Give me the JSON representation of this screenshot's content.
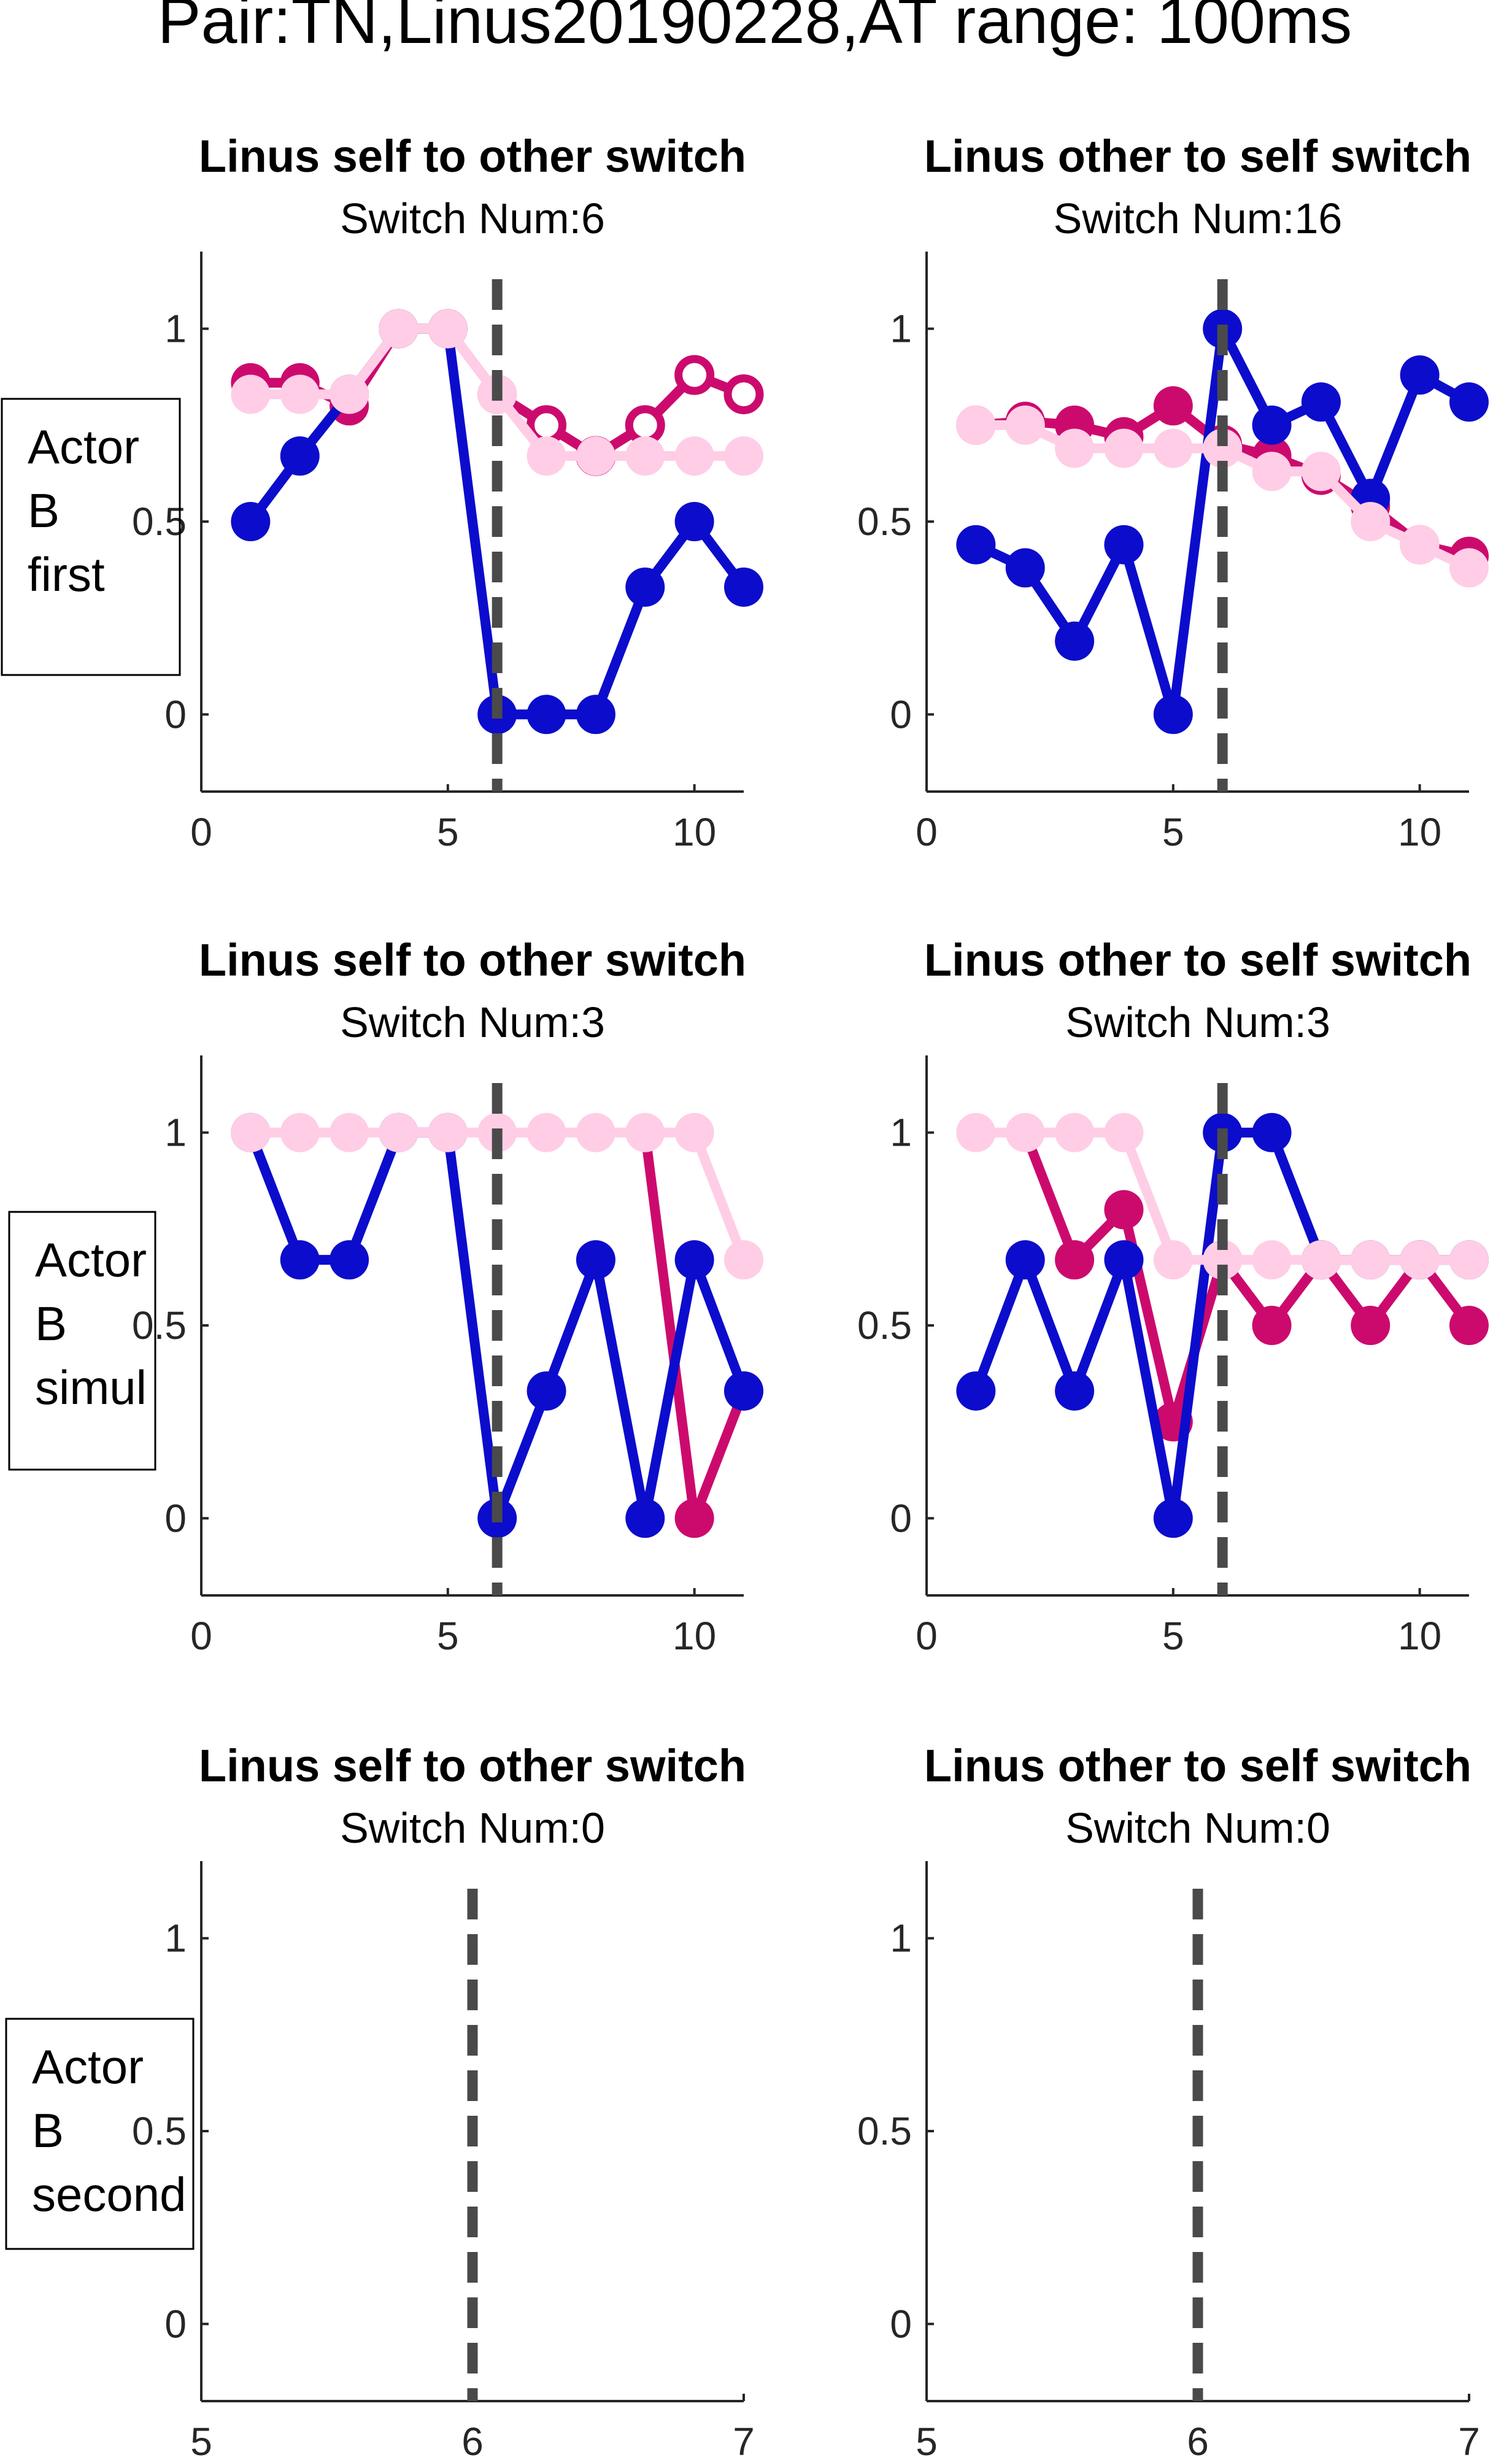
{
  "figure": {
    "title": "Pair:TN,Linus20190228,AT range: 100ms"
  },
  "colors": {
    "blue": "#0c0ccc",
    "magenta": "#cc0a6e",
    "pink": "#ffcde6",
    "dashed": "#4a4a4a",
    "axis": "#262626"
  },
  "row_labels": [
    [
      "Actor",
      "B",
      "first"
    ],
    [
      "Actor",
      "B",
      "simul"
    ],
    [
      "Actor",
      "B",
      "second"
    ]
  ],
  "chart_data": [
    {
      "type": "line",
      "title": "Linus self to other switch",
      "subtitle": "Switch Num:6",
      "xlim": [
        0,
        11
      ],
      "ylim": [
        -0.2,
        1.2
      ],
      "xticks": [
        0,
        5,
        10
      ],
      "xtick_labels": [
        "0",
        "5",
        "10"
      ],
      "yticks": [
        0,
        0.5,
        1
      ],
      "ytick_labels": [
        "0",
        "0.5",
        "1"
      ],
      "switch_x": 6,
      "series": [
        {
          "color": "magenta",
          "x": [
            1,
            2,
            3,
            4,
            5,
            6,
            7,
            8,
            9,
            10,
            11
          ],
          "y": [
            0.86,
            0.86,
            0.8,
            1,
            1,
            0.83,
            0.75,
            0.67,
            0.75,
            0.88,
            0.83
          ],
          "marker": "mixed",
          "open_from": 7
        },
        {
          "color": "blue",
          "x": [
            1,
            2,
            3,
            4,
            5,
            6,
            7,
            8,
            9,
            10,
            11
          ],
          "y": [
            0.5,
            0.67,
            0.83,
            1,
            1,
            0,
            0,
            0,
            0.33,
            0.5,
            0.33
          ],
          "marker": "filled"
        },
        {
          "color": "pink",
          "x": [
            1,
            2,
            3,
            4,
            5,
            6,
            7,
            8,
            9,
            10,
            11
          ],
          "y": [
            0.83,
            0.83,
            0.83,
            1,
            1,
            0.83,
            0.67,
            0.67,
            0.67,
            0.67,
            0.67
          ],
          "marker": "filled"
        }
      ]
    },
    {
      "type": "line",
      "title": "Linus other to self switch",
      "subtitle": "Switch Num:16",
      "xlim": [
        0,
        11
      ],
      "ylim": [
        -0.2,
        1.2
      ],
      "xticks": [
        0,
        5,
        10
      ],
      "xtick_labels": [
        "0",
        "5",
        "10"
      ],
      "yticks": [
        0,
        0.5,
        1
      ],
      "ytick_labels": [
        "0",
        "0.5",
        "1"
      ],
      "switch_x": 6,
      "series": [
        {
          "color": "magenta",
          "x": [
            1,
            2,
            3,
            4,
            5,
            6,
            7,
            8,
            9,
            10,
            11
          ],
          "y": [
            0.75,
            0.76,
            0.75,
            0.72,
            0.8,
            0.7,
            0.67,
            0.62,
            0.54,
            0.44,
            0.41
          ],
          "marker": "filled"
        },
        {
          "color": "blue",
          "x": [
            1,
            2,
            3,
            4,
            5,
            6,
            7,
            8,
            9,
            10,
            11
          ],
          "y": [
            0.44,
            0.38,
            0.19,
            0.44,
            0,
            1,
            0.75,
            0.81,
            0.56,
            0.88,
            0.81
          ],
          "marker": "filled"
        },
        {
          "color": "pink",
          "x": [
            1,
            2,
            3,
            4,
            5,
            6,
            7,
            8,
            9,
            10,
            11
          ],
          "y": [
            0.75,
            0.75,
            0.69,
            0.69,
            0.69,
            0.69,
            0.63,
            0.63,
            0.5,
            0.44,
            0.38
          ],
          "marker": "filled"
        }
      ]
    },
    {
      "type": "line",
      "title": "Linus self to other switch",
      "subtitle": "Switch Num:3",
      "xlim": [
        0,
        11
      ],
      "ylim": [
        -0.2,
        1.2
      ],
      "xticks": [
        0,
        5,
        10
      ],
      "xtick_labels": [
        "0",
        "5",
        "10"
      ],
      "yticks": [
        0,
        0.5,
        1
      ],
      "ytick_labels": [
        "0",
        "0.5",
        "1"
      ],
      "switch_x": 6,
      "series": [
        {
          "color": "magenta",
          "x": [
            9,
            10,
            11
          ],
          "y": [
            1,
            0,
            0.33
          ],
          "marker": "filled",
          "hidden_points": [
            0
          ]
        },
        {
          "color": "blue",
          "x": [
            1,
            2,
            3,
            4,
            5,
            6,
            7,
            8,
            9,
            10,
            11
          ],
          "y": [
            1,
            0.67,
            0.67,
            1,
            1,
            0,
            0.33,
            0.67,
            0,
            0.67,
            0.33
          ],
          "marker": "filled"
        },
        {
          "color": "pink",
          "x": [
            1,
            2,
            3,
            4,
            5,
            6,
            7,
            8,
            9,
            10,
            11
          ],
          "y": [
            1,
            1,
            1,
            1,
            1,
            1,
            1,
            1,
            1,
            1,
            0.67
          ],
          "marker": "filled"
        }
      ]
    },
    {
      "type": "line",
      "title": "Linus other to self switch",
      "subtitle": "Switch Num:3",
      "xlim": [
        0,
        11
      ],
      "ylim": [
        -0.2,
        1.2
      ],
      "xticks": [
        0,
        5,
        10
      ],
      "xtick_labels": [
        "0",
        "5",
        "10"
      ],
      "yticks": [
        0,
        0.5,
        1
      ],
      "ytick_labels": [
        "0",
        "0.5",
        "1"
      ],
      "switch_x": 6,
      "series": [
        {
          "color": "magenta",
          "x": [
            2,
            3,
            4,
            5,
            6,
            7,
            8,
            9,
            10,
            11
          ],
          "y": [
            1,
            0.67,
            0.8,
            0.25,
            0.67,
            0.5,
            0.67,
            0.5,
            0.67,
            0.5
          ],
          "marker": "filled",
          "hidden_points": [
            0
          ]
        },
        {
          "color": "blue",
          "x": [
            1,
            2,
            3,
            4,
            5,
            6,
            7,
            8,
            9,
            10,
            11
          ],
          "y": [
            0.33,
            0.67,
            0.33,
            0.67,
            0,
            1,
            1,
            0.67,
            0.67,
            0.67,
            0.67
          ],
          "marker": "filled"
        },
        {
          "color": "pink",
          "x": [
            1,
            2,
            3,
            4,
            5,
            6,
            7,
            8,
            9,
            10,
            11
          ],
          "y": [
            1,
            1,
            1,
            1,
            0.67,
            0.67,
            0.67,
            0.67,
            0.67,
            0.67,
            0.67
          ],
          "marker": "filled"
        }
      ]
    },
    {
      "type": "line",
      "title": "Linus self to other switch",
      "subtitle": "Switch Num:0",
      "xlim": [
        5,
        7
      ],
      "ylim": [
        -0.2,
        1.2
      ],
      "xticks": [
        5,
        6,
        7
      ],
      "xtick_labels": [
        "5",
        "6",
        "7"
      ],
      "yticks": [
        0,
        0.5,
        1
      ],
      "ytick_labels": [
        "0",
        "0.5",
        "1"
      ],
      "switch_x": 6,
      "series": []
    },
    {
      "type": "line",
      "title": "Linus other to self switch",
      "subtitle": "Switch Num:0",
      "xlim": [
        5,
        7
      ],
      "ylim": [
        -0.2,
        1.2
      ],
      "xticks": [
        5,
        6,
        7
      ],
      "xtick_labels": [
        "5",
        "6",
        "7"
      ],
      "yticks": [
        0,
        0.5,
        1
      ],
      "ytick_labels": [
        "0",
        "0.5",
        "1"
      ],
      "switch_x": 6,
      "series": []
    }
  ]
}
